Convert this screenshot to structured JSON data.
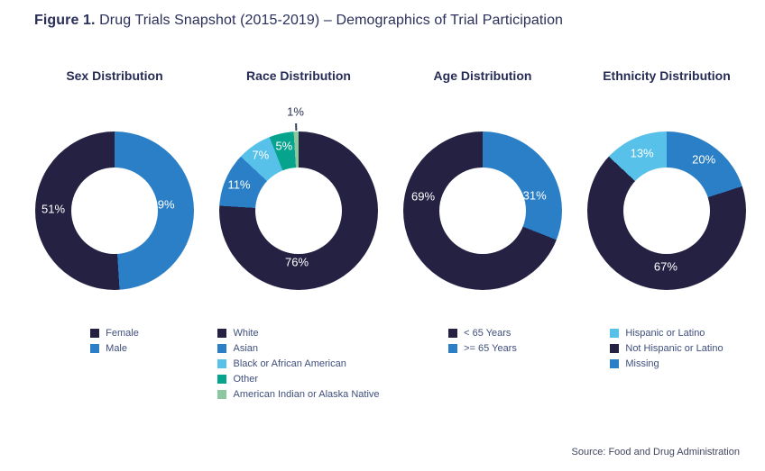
{
  "figure_title": {
    "prefix": "Figure 1.",
    "rest": " Drug Trials Snapshot (2015-2019) – Demographics of Trial Participation"
  },
  "source_note": "Source: Food and Drug Administration",
  "colors": {
    "navy": "#242143",
    "blue": "#2B7FC6",
    "light_blue": "#58C1EA",
    "teal": "#06A38D",
    "green": "#8BC8A0",
    "heading_text": "#262C55",
    "legend_text": "#3F4F7D",
    "source_text": "#41465E",
    "background": "#FFFFFF"
  },
  "chart_data": [
    {
      "type": "pie",
      "subtype": "donut",
      "title": "Sex Distribution",
      "unit": "%",
      "legend_position": "bottom",
      "slices": [
        {
          "label": "Female",
          "value": 51,
          "pct_label": "51%",
          "color": "#242143",
          "start_deg": 176.4,
          "end_deg": 360,
          "label_angle_deg": 272,
          "label_r": 68,
          "label_color": "#FFFFFF"
        },
        {
          "label": "Male",
          "value": 49,
          "pct_label": "49%",
          "color": "#2B7FC6",
          "start_deg": 0,
          "end_deg": 176.4,
          "label_angle_deg": 83,
          "label_r": 54,
          "label_color": "#FFFFFF"
        }
      ]
    },
    {
      "type": "pie",
      "subtype": "donut",
      "title": "Race Distribution",
      "unit": "%",
      "legend_position": "bottom",
      "slices": [
        {
          "label": "White",
          "value": 76,
          "pct_label": "76%",
          "color": "#242143",
          "start_deg": 0,
          "end_deg": 273.6,
          "label_angle_deg": 182,
          "label_r": 57,
          "label_color": "#FFFFFF"
        },
        {
          "label": "Asian",
          "value": 11,
          "pct_label": "11%",
          "color": "#2B7FC6",
          "start_deg": 273.6,
          "end_deg": 313.2,
          "label_angle_deg": 293.5,
          "label_r": 72,
          "label_color": "#FFFFFF"
        },
        {
          "label": "Black or African American",
          "value": 7,
          "pct_label": "7%",
          "color": "#58C1EA",
          "start_deg": 313.2,
          "end_deg": 338.4,
          "label_angle_deg": 325.8,
          "label_r": 75,
          "label_color": "#FFFFFF"
        },
        {
          "label": "Other",
          "value": 5,
          "pct_label": "5%",
          "color": "#06A38D",
          "start_deg": 338.4,
          "end_deg": 356.4,
          "label_angle_deg": 347.4,
          "label_r": 74,
          "label_color": "#FFFFFF"
        },
        {
          "label": "American Indian or Alaska Native",
          "value": 1,
          "pct_label": "1%",
          "color": "#8BC8A0",
          "start_deg": 356.4,
          "end_deg": 360,
          "label_angle_deg": 358.2,
          "label_r": 110,
          "label_color": "#2B3150",
          "outside": true,
          "tick": true
        }
      ]
    },
    {
      "type": "pie",
      "subtype": "donut",
      "title": "Age Distribution",
      "unit": "%",
      "legend_position": "bottom",
      "slices": [
        {
          "label": "< 65 Years",
          "value": 69,
          "pct_label": "69%",
          "color": "#242143",
          "start_deg": 111.6,
          "end_deg": 360,
          "label_angle_deg": 284,
          "label_r": 68,
          "label_color": "#FFFFFF"
        },
        {
          "label": ">= 65 Years",
          "value": 31,
          "pct_label": "31%",
          "color": "#2B7FC6",
          "start_deg": 0,
          "end_deg": 111.6,
          "label_angle_deg": 74,
          "label_r": 60,
          "label_color": "#FFFFFF"
        }
      ]
    },
    {
      "type": "pie",
      "subtype": "donut",
      "title": "Ethnicity Distribution",
      "unit": "%",
      "legend_position": "bottom",
      "slices": [
        {
          "label": "Hispanic or Latino",
          "value": 13,
          "pct_label": "13%",
          "color": "#58C1EA",
          "start_deg": 313.2,
          "end_deg": 360,
          "label_angle_deg": 337,
          "label_r": 70,
          "label_color": "#FFFFFF"
        },
        {
          "label": "Not Hispanic or Latino",
          "value": 67,
          "pct_label": "67%",
          "color": "#242143",
          "start_deg": 72,
          "end_deg": 313.2,
          "label_angle_deg": 181,
          "label_r": 62,
          "label_color": "#FFFFFF"
        },
        {
          "label": "Missing",
          "value": 20,
          "pct_label": "20%",
          "color": "#2B7FC6",
          "start_deg": 0,
          "end_deg": 72,
          "label_angle_deg": 36,
          "label_r": 70,
          "label_color": "#FFFFFF"
        }
      ]
    }
  ]
}
